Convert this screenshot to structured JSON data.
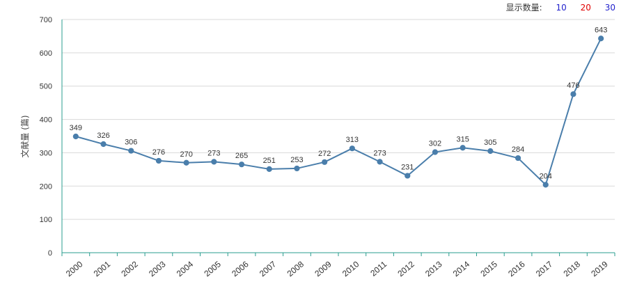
{
  "toolbar": {
    "label": "显示数量:",
    "options": [
      {
        "text": "10",
        "color": "#1f1fcc"
      },
      {
        "text": "20",
        "color": "#e00000"
      },
      {
        "text": "30",
        "color": "#1f1fcc"
      }
    ]
  },
  "chart_data": {
    "type": "line",
    "title": "",
    "xlabel": "",
    "ylabel": "文献量 (篇)",
    "ylim": [
      0,
      700
    ],
    "yticks": [
      0,
      100,
      200,
      300,
      400,
      500,
      600,
      700
    ],
    "categories": [
      "2000",
      "2001",
      "2002",
      "2003",
      "2004",
      "2005",
      "2006",
      "2007",
      "2008",
      "2009",
      "2010",
      "2011",
      "2012",
      "2013",
      "2014",
      "2015",
      "2016",
      "2017",
      "2018",
      "2019"
    ],
    "series": [
      {
        "values": [
          349,
          326,
          306,
          276,
          270,
          273,
          265,
          251,
          253,
          272,
          313,
          273,
          231,
          302,
          315,
          305,
          284,
          204,
          476,
          643
        ]
      }
    ],
    "grid": true,
    "line_color": "#4a7eab",
    "axis_color": "#2a9d8f"
  }
}
